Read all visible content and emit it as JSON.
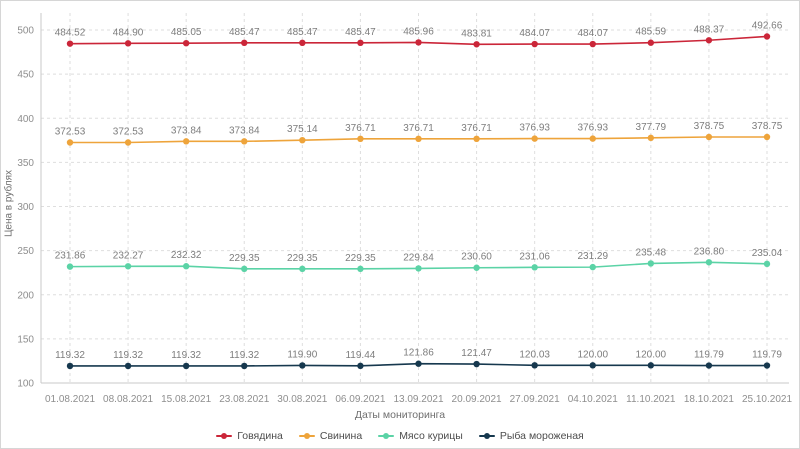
{
  "chart_data": {
    "type": "line",
    "title": "",
    "xlabel": "Даты мониторинга",
    "ylabel": "Цена в рублях",
    "categories": [
      "01.08.2021",
      "08.08.2021",
      "15.08.2021",
      "23.08.2021",
      "30.08.2021",
      "06.09.2021",
      "13.09.2021",
      "20.09.2021",
      "27.09.2021",
      "04.10.2021",
      "11.10.2021",
      "18.10.2021",
      "25.10.2021"
    ],
    "series": [
      {
        "name": "Говядина",
        "color": "#cb2639",
        "values": [
          484.52,
          484.9,
          485.05,
          485.47,
          485.47,
          485.47,
          485.96,
          483.81,
          484.07,
          484.07,
          485.59,
          488.37,
          492.66
        ]
      },
      {
        "name": "Свинина",
        "color": "#eea43b",
        "values": [
          372.53,
          372.53,
          373.84,
          373.84,
          375.14,
          376.71,
          376.71,
          376.71,
          376.93,
          376.93,
          377.79,
          378.75,
          378.75
        ]
      },
      {
        "name": "Мясо курицы",
        "color": "#5bd3a6",
        "values": [
          231.86,
          232.27,
          232.32,
          229.35,
          229.35,
          229.35,
          229.84,
          230.6,
          231.06,
          231.29,
          235.48,
          236.8,
          235.04
        ]
      },
      {
        "name": "Рыба мороженая",
        "color": "#16384e",
        "values": [
          119.32,
          119.32,
          119.32,
          119.32,
          119.9,
          119.44,
          121.86,
          121.47,
          120.03,
          120.0,
          120.0,
          119.79,
          119.79
        ]
      }
    ],
    "ylim": [
      100,
      500
    ],
    "ytick_step": 50,
    "grid": true,
    "grid_style": "dashed",
    "legend_position": "bottom",
    "value_labels": true
  }
}
